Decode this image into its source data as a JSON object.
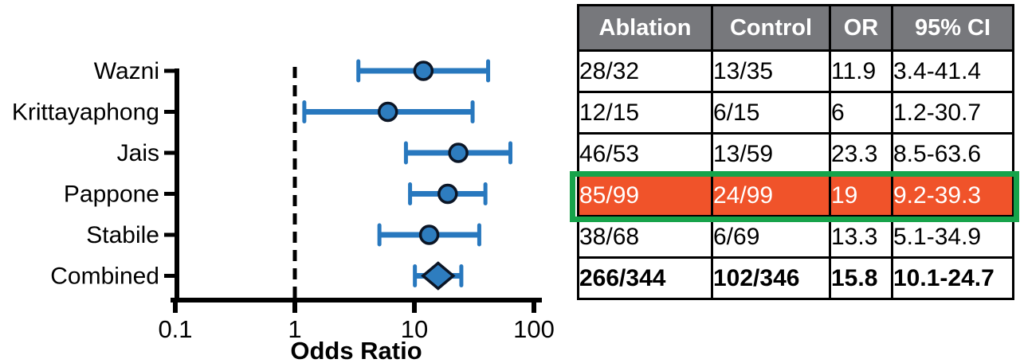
{
  "chart_data": {
    "type": "forest",
    "xlabel": "Odds Ratio",
    "xscale": "log",
    "xlim": [
      0.1,
      100
    ],
    "x_ticks": [
      0.1,
      1,
      10,
      100
    ],
    "x_tick_labels": [
      "0.1",
      "1",
      "10",
      "100"
    ],
    "reference_line": {
      "x": 1,
      "style": "dashed",
      "color": "#000000"
    },
    "grid": false,
    "studies": [
      {
        "label": "Wazni",
        "or": 11.9,
        "ci_low": 3.4,
        "ci_high": 41.4,
        "marker": "circle",
        "highlighted": false
      },
      {
        "label": "Krittayaphong",
        "or": 6,
        "ci_low": 1.2,
        "ci_high": 30.7,
        "marker": "circle",
        "highlighted": false
      },
      {
        "label": "Jais",
        "or": 23.3,
        "ci_low": 8.5,
        "ci_high": 63.6,
        "marker": "circle",
        "highlighted": false
      },
      {
        "label": "Pappone",
        "or": 19,
        "ci_low": 9.2,
        "ci_high": 39.3,
        "marker": "circle",
        "highlighted": true
      },
      {
        "label": "Stabile",
        "or": 13.3,
        "ci_low": 5.1,
        "ci_high": 34.9,
        "marker": "circle",
        "highlighted": false
      },
      {
        "label": "Combined",
        "or": 15.8,
        "ci_low": 10.1,
        "ci_high": 24.7,
        "marker": "diamond",
        "highlighted": false
      }
    ],
    "colors": {
      "bar": "#2878BE",
      "marker_fill": "#2E7DBF",
      "marker_edge": "#0B1525",
      "axis": "#000000",
      "label_text": "#000000"
    }
  },
  "table": {
    "headers": [
      "Ablation",
      "Control",
      "OR",
      "95% CI"
    ],
    "rows": [
      {
        "cells": [
          "28/32",
          "13/35",
          "11.9",
          "3.4-41.4"
        ],
        "highlighted": false,
        "bold": false
      },
      {
        "cells": [
          "12/15",
          "6/15",
          "6",
          "1.2-30.7"
        ],
        "highlighted": false,
        "bold": false
      },
      {
        "cells": [
          "46/53",
          "13/59",
          "23.3",
          "8.5-63.6"
        ],
        "highlighted": false,
        "bold": false
      },
      {
        "cells": [
          "85/99",
          "24/99",
          "19",
          "9.2-39.3"
        ],
        "highlighted": true,
        "bold": false
      },
      {
        "cells": [
          "38/68",
          "6/69",
          "13.3",
          "5.1-34.9"
        ],
        "highlighted": false,
        "bold": false
      },
      {
        "cells": [
          "266/344",
          "102/346",
          "15.8",
          "10.1-24.7"
        ],
        "highlighted": false,
        "bold": true
      }
    ],
    "colors": {
      "header_bg": "#77787C",
      "header_text": "#FFFFFF",
      "highlight_bg": "#F0532A",
      "highlight_text": "#FFFFFF",
      "highlight_border": "#16A34A",
      "grid": "#000000"
    }
  }
}
